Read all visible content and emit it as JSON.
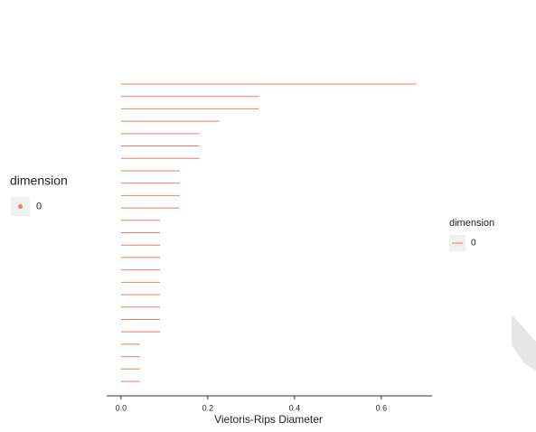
{
  "chart_data": {
    "type": "barcode",
    "x_label": "Vietoris-Rips Diameter",
    "color": "#f8766d",
    "values": [
      0.681,
      0.317,
      0.317,
      0.227,
      0.181,
      0.181,
      0.181,
      0.135,
      0.135,
      0.135,
      0.135,
      0.09,
      0.09,
      0.09,
      0.09,
      0.09,
      0.09,
      0.09,
      0.09,
      0.09,
      0.09,
      0.044,
      0.044,
      0.044,
      0.044
    ],
    "xlim": [
      -0.033,
      0.717
    ],
    "xticks": [
      {
        "value": 0,
        "label": "0.0"
      },
      0.2,
      0.4,
      0.6
    ],
    "legends": [
      {
        "title": "dimension",
        "key": "point",
        "labels": [
          "0"
        ]
      },
      {
        "title": "dimension",
        "key": "line",
        "labels": [
          "0"
        ]
      }
    ]
  }
}
